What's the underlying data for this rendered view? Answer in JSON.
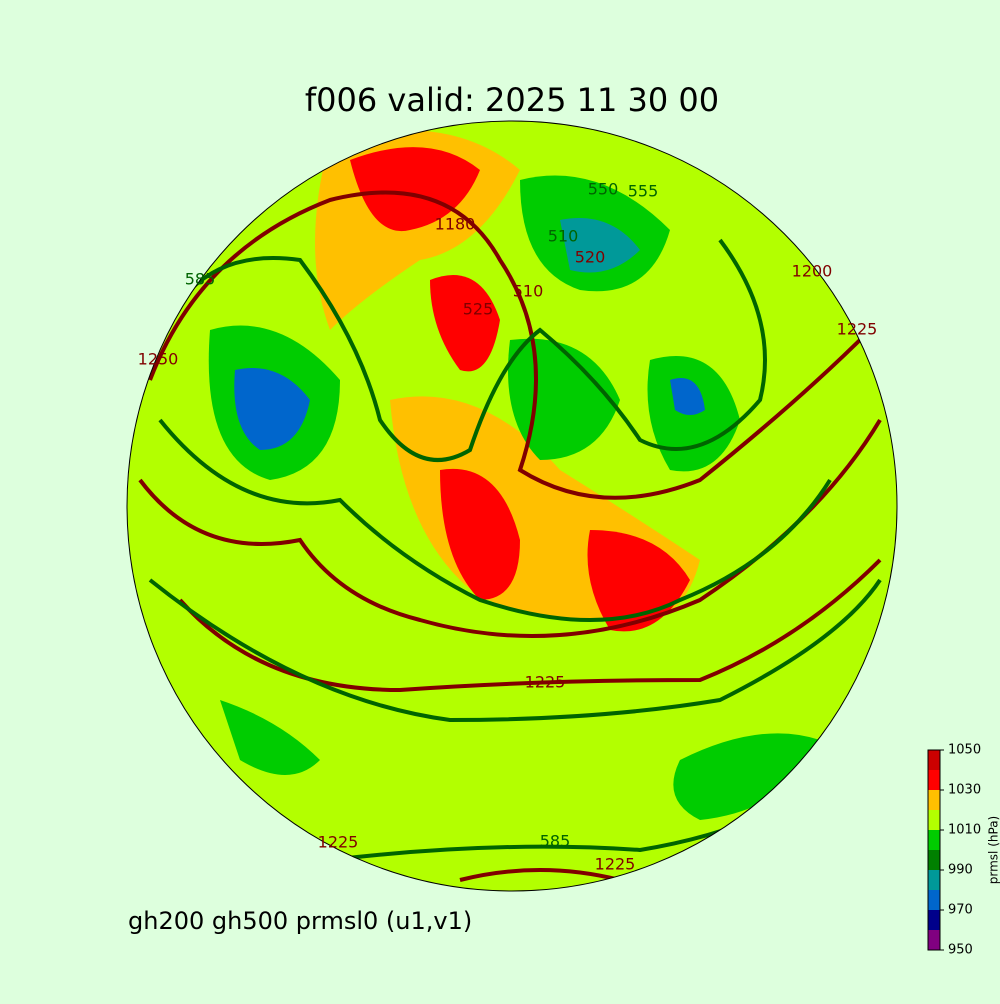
{
  "title": "f006 valid:   2025 11 30 00",
  "footer": "gh200 gh500 prmsl0 (u1,v1)",
  "colorbar": {
    "label": "prmsl (hPa)",
    "levels": [
      950,
      960,
      970,
      980,
      990,
      1000,
      1010,
      1020,
      1030,
      1040,
      1050
    ],
    "colors": [
      "#800080",
      "#00008b",
      "#0066cc",
      "#009999",
      "#008000",
      "#00cc00",
      "#b3ff00",
      "#ffc000",
      "#ff0000",
      "#cc0000"
    ],
    "ticks": [
      950,
      970,
      990,
      1010,
      1030,
      1050
    ]
  },
  "contour_labels": [
    1180,
    525,
    1225,
    1225,
    585,
    555,
    550,
    510,
    520,
    510,
    585,
    1250,
    1200,
    1225,
    1225
  ]
}
